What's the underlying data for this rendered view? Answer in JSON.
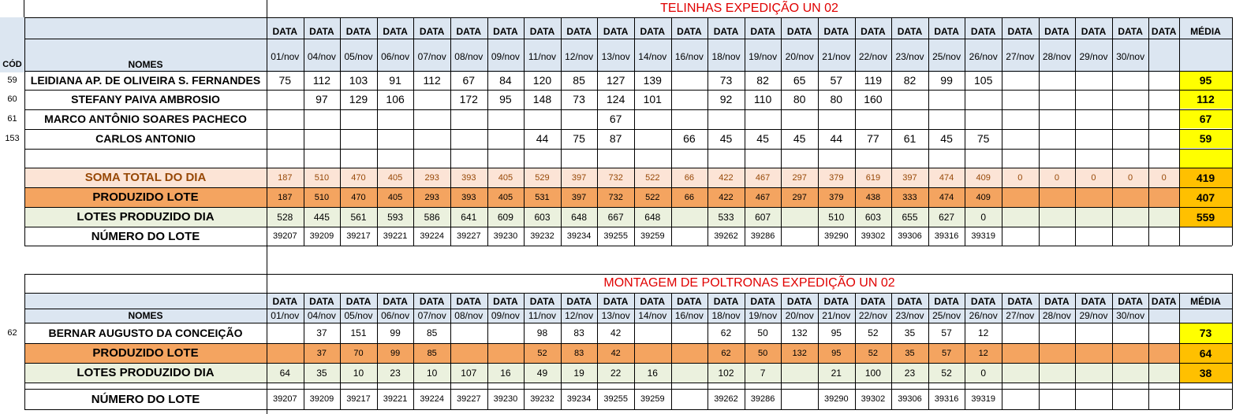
{
  "section1": {
    "title": "TELINHAS EXPEDIÇÃO UN 02",
    "data_label": "DATA",
    "media_label": "MÉDIA",
    "cod_label": "CÓD",
    "nomes_label": "NOMES",
    "dates": [
      "01/nov",
      "04/nov",
      "05/nov",
      "06/nov",
      "07/nov",
      "08/nov",
      "09/nov",
      "11/nov",
      "12/nov",
      "13/nov",
      "14/nov",
      "16/nov",
      "18/nov",
      "19/nov",
      "20/nov",
      "21/nov",
      "22/nov",
      "23/nov",
      "25/nov",
      "26/nov",
      "27/nov",
      "28/nov",
      "29/nov",
      "30/nov",
      ""
    ],
    "employees": [
      {
        "cod": "59",
        "name": "LEIDIANA AP. DE OLIVEIRA S. FERNANDES",
        "values": [
          "75",
          "112",
          "103",
          "91",
          "112",
          "67",
          "84",
          "120",
          "85",
          "127",
          "139",
          "",
          "73",
          "82",
          "65",
          "57",
          "119",
          "82",
          "99",
          "105",
          "",
          "",
          "",
          "",
          ""
        ],
        "media": "95"
      },
      {
        "cod": "60",
        "name": "STEFANY PAIVA AMBROSIO",
        "values": [
          "",
          "97",
          "129",
          "106",
          "",
          "172",
          "95",
          "148",
          "73",
          "124",
          "101",
          "",
          "92",
          "110",
          "80",
          "80",
          "160",
          "",
          "",
          "",
          "",
          "",
          "",
          "",
          ""
        ],
        "media": "112"
      },
      {
        "cod": "61",
        "name": "MARCO ANTÔNIO SOARES PACHECO",
        "values": [
          "",
          "",
          "",
          "",
          "",
          "",
          "",
          "",
          "",
          "67",
          "",
          "",
          "",
          "",
          "",
          "",
          "",
          "",
          "",
          "",
          "",
          "",
          "",
          "",
          ""
        ],
        "media": "67"
      },
      {
        "cod": "153",
        "name": "CARLOS ANTONIO",
        "values": [
          "",
          "",
          "",
          "",
          "",
          "",
          "",
          "44",
          "75",
          "87",
          "",
          "66",
          "45",
          "45",
          "45",
          "44",
          "77",
          "61",
          "45",
          "75",
          "",
          "",
          "",
          "",
          ""
        ],
        "media": "59"
      }
    ],
    "soma": {
      "label": "SOMA TOTAL DO DIA",
      "values": [
        "187",
        "510",
        "470",
        "405",
        "293",
        "393",
        "405",
        "529",
        "397",
        "732",
        "522",
        "66",
        "422",
        "467",
        "297",
        "379",
        "619",
        "397",
        "474",
        "409",
        "0",
        "0",
        "0",
        "0",
        "0"
      ],
      "media": "419"
    },
    "produzido": {
      "label": "PRODUZIDO LOTE",
      "values": [
        "187",
        "510",
        "470",
        "405",
        "293",
        "393",
        "405",
        "531",
        "397",
        "732",
        "522",
        "66",
        "422",
        "467",
        "297",
        "379",
        "438",
        "333",
        "474",
        "409",
        "",
        "",
        "",
        "",
        ""
      ],
      "media": "407"
    },
    "lotes": {
      "label": "LOTES PRODUZIDO DIA",
      "values": [
        "528",
        "445",
        "561",
        "593",
        "586",
        "641",
        "609",
        "603",
        "648",
        "667",
        "648",
        "",
        "533",
        "607",
        "",
        "510",
        "603",
        "655",
        "627",
        "0",
        "",
        "",
        "",
        "",
        ""
      ],
      "media": "559"
    },
    "numero": {
      "label": "NÚMERO DO LOTE",
      "values": [
        "39207",
        "39209",
        "39217",
        "39221",
        "39224",
        "39227",
        "39230",
        "39232",
        "39234",
        "39255",
        "39259",
        "",
        "39262",
        "39286",
        "",
        "39290",
        "39302",
        "39306",
        "39316",
        "39319",
        "",
        "",
        "",
        "",
        ""
      ]
    }
  },
  "section2": {
    "title": "MONTAGEM DE POLTRONAS EXPEDIÇÃO UN 02",
    "data_label": "DATA",
    "media_label": "MÉDIA",
    "nomes_label": "NOMES",
    "dates": [
      "01/nov",
      "04/nov",
      "05/nov",
      "06/nov",
      "07/nov",
      "08/nov",
      "09/nov",
      "11/nov",
      "12/nov",
      "13/nov",
      "14/nov",
      "16/nov",
      "18/nov",
      "19/nov",
      "20/nov",
      "21/nov",
      "22/nov",
      "23/nov",
      "25/nov",
      "26/nov",
      "27/nov",
      "28/nov",
      "29/nov",
      "30/nov",
      ""
    ],
    "employees": [
      {
        "cod": "62",
        "name": "BERNAR AUGUSTO DA CONCEIÇÃO",
        "values": [
          "",
          "37",
          "151",
          "99",
          "85",
          "",
          "",
          "98",
          "83",
          "42",
          "",
          "",
          "62",
          "50",
          "132",
          "95",
          "52",
          "35",
          "57",
          "12",
          "",
          "",
          "",
          "",
          ""
        ],
        "media": "73"
      }
    ],
    "produzido": {
      "label": "PRODUZIDO LOTE",
      "values": [
        "",
        "37",
        "70",
        "99",
        "85",
        "",
        "",
        "52",
        "83",
        "42",
        "",
        "",
        "62",
        "50",
        "132",
        "95",
        "52",
        "35",
        "57",
        "12",
        "",
        "",
        "",
        "",
        ""
      ],
      "media": "64"
    },
    "lotes": {
      "label": "LOTES PRODUZIDO DIA",
      "values": [
        "64",
        "35",
        "10",
        "23",
        "10",
        "107",
        "16",
        "49",
        "19",
        "22",
        "16",
        "",
        "102",
        "7",
        "",
        "21",
        "100",
        "23",
        "52",
        "0",
        "",
        "",
        "",
        "",
        ""
      ],
      "media": "38"
    },
    "numero": {
      "label": "NÚMERO DO LOTE",
      "values": [
        "39207",
        "39209",
        "39217",
        "39221",
        "39224",
        "39227",
        "39230",
        "39232",
        "39234",
        "39255",
        "39259",
        "",
        "39262",
        "39286",
        "",
        "39290",
        "39302",
        "39306",
        "39316",
        "39319",
        "",
        "",
        "",
        "",
        ""
      ]
    }
  },
  "colors": {
    "header_blue": "#dce6f1",
    "soma_peach": "#fce4d6",
    "produzido_orange": "#f4a460",
    "lotes_green": "#ebf1de",
    "media_yellow": "#ffff00",
    "media_gold": "#ffc000",
    "title_red": "#e00000",
    "soma_text": "#974806"
  }
}
